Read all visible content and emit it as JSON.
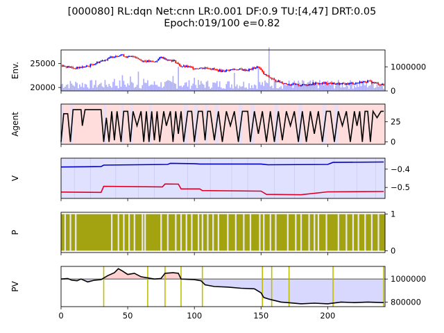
{
  "title_line1": "[000080] RL:dqn Net:cnn LR:0.001 DF:0.9 TU:[4,47] DRT:0.05",
  "title_line2": "Epoch:019/100 e=0.82",
  "colors": {
    "up": "#0000ff",
    "down": "#ff0000",
    "volume": "#aaaaff",
    "agent_line": "#000000",
    "agent_shade": "#ffdddd",
    "agent_shade_alt": "#e0e0ff",
    "v_bg": "#e0e0ff",
    "v_line_blue": "#0000cc",
    "v_line_red": "#dd0022",
    "p_fill": "#a3a312",
    "pv_line": "#000000",
    "pv_gain": "#ffd0d0",
    "pv_loss": "#d8d8ff",
    "pv_base": "#808080",
    "pv_vlines": "#bfbf00"
  },
  "chart_data": [
    {
      "type": "line",
      "id": "env",
      "ylabel": "Env.",
      "left_ticks": [
        "20000",
        "25000"
      ],
      "left_tick_values": [
        20000,
        25000
      ],
      "right_ticks": [
        "0",
        "1000000"
      ],
      "right_tick_values": [
        0,
        1000000
      ],
      "ylim": [
        19300,
        27800
      ],
      "vol_lim": [
        0,
        1700000
      ],
      "price_points": [
        [
          0,
          24600
        ],
        [
          10,
          24000
        ],
        [
          20,
          24400
        ],
        [
          30,
          25500
        ],
        [
          40,
          26500
        ],
        [
          45,
          26800
        ],
        [
          50,
          26300
        ],
        [
          55,
          26500
        ],
        [
          60,
          25600
        ],
        [
          70,
          25300
        ],
        [
          75,
          26300
        ],
        [
          80,
          25800
        ],
        [
          85,
          25500
        ],
        [
          90,
          24400
        ],
        [
          95,
          24300
        ],
        [
          100,
          24000
        ],
        [
          110,
          24100
        ],
        [
          120,
          23400
        ],
        [
          130,
          23800
        ],
        [
          140,
          23600
        ],
        [
          148,
          24300
        ],
        [
          152,
          22800
        ],
        [
          160,
          21500
        ],
        [
          170,
          20700
        ],
        [
          180,
          20500
        ],
        [
          190,
          20800
        ],
        [
          200,
          20900
        ],
        [
          210,
          20700
        ],
        [
          220,
          20900
        ],
        [
          230,
          21300
        ],
        [
          242,
          20500
        ]
      ],
      "volume_spikes": [
        [
          40,
          500000
        ],
        [
          46,
          650000
        ],
        [
          52,
          600000
        ],
        [
          58,
          800000
        ],
        [
          62,
          500000
        ],
        [
          84,
          620000
        ],
        [
          88,
          1000000
        ],
        [
          100,
          550000
        ],
        [
          130,
          750000
        ],
        [
          148,
          1000000
        ],
        [
          156,
          1800000
        ],
        [
          160,
          550000
        ],
        [
          200,
          420000
        ]
      ]
    },
    {
      "type": "line",
      "id": "agent",
      "ylabel": "Agent",
      "right_ticks": [
        "0",
        "25"
      ],
      "right_tick_values": [
        0,
        25
      ],
      "ylim": [
        -3,
        47
      ],
      "points": [
        [
          0,
          0
        ],
        [
          2,
          35
        ],
        [
          5,
          35
        ],
        [
          7,
          0
        ],
        [
          9,
          40
        ],
        [
          15,
          40
        ],
        [
          16,
          20
        ],
        [
          18,
          40
        ],
        [
          30,
          40
        ],
        [
          32,
          0
        ],
        [
          34,
          30
        ],
        [
          36,
          0
        ],
        [
          38,
          38
        ],
        [
          40,
          2
        ],
        [
          42,
          38
        ],
        [
          45,
          0
        ],
        [
          47,
          38
        ],
        [
          50,
          38
        ],
        [
          52,
          0
        ],
        [
          54,
          38
        ],
        [
          57,
          20
        ],
        [
          60,
          38
        ],
        [
          62,
          0
        ],
        [
          64,
          38
        ],
        [
          66,
          0
        ],
        [
          68,
          38
        ],
        [
          70,
          2
        ],
        [
          72,
          38
        ],
        [
          74,
          0
        ],
        [
          77,
          38
        ],
        [
          79,
          20
        ],
        [
          82,
          38
        ],
        [
          84,
          0
        ],
        [
          86,
          38
        ],
        [
          88,
          10
        ],
        [
          90,
          38
        ],
        [
          92,
          0
        ],
        [
          95,
          38
        ],
        [
          98,
          38
        ],
        [
          100,
          0
        ],
        [
          103,
          38
        ],
        [
          106,
          38
        ],
        [
          108,
          2
        ],
        [
          110,
          38
        ],
        [
          112,
          38
        ],
        [
          115,
          2
        ],
        [
          118,
          38
        ],
        [
          121,
          0
        ],
        [
          124,
          38
        ],
        [
          127,
          20
        ],
        [
          130,
          38
        ],
        [
          133,
          0
        ],
        [
          136,
          38
        ],
        [
          140,
          38
        ],
        [
          142,
          0
        ],
        [
          145,
          38
        ],
        [
          148,
          10
        ],
        [
          151,
          38
        ],
        [
          154,
          0
        ],
        [
          157,
          38
        ],
        [
          160,
          0
        ],
        [
          163,
          38
        ],
        [
          166,
          2
        ],
        [
          169,
          38
        ],
        [
          172,
          20
        ],
        [
          175,
          38
        ],
        [
          178,
          0
        ],
        [
          181,
          38
        ],
        [
          184,
          0
        ],
        [
          187,
          38
        ],
        [
          190,
          10
        ],
        [
          193,
          38
        ],
        [
          196,
          0
        ],
        [
          199,
          38
        ],
        [
          202,
          38
        ],
        [
          205,
          0
        ],
        [
          208,
          38
        ],
        [
          211,
          20
        ],
        [
          214,
          38
        ],
        [
          217,
          0
        ],
        [
          220,
          38
        ],
        [
          222,
          20
        ],
        [
          224,
          38
        ],
        [
          226,
          0
        ],
        [
          228,
          38
        ],
        [
          230,
          38
        ],
        [
          232,
          0
        ],
        [
          234,
          38
        ],
        [
          237,
          30
        ],
        [
          240,
          38
        ],
        [
          242,
          38
        ]
      ]
    },
    {
      "type": "line",
      "id": "v",
      "ylabel": "V",
      "right_ticks": [
        "−0.4",
        "−0.5"
      ],
      "right_tick_values": [
        -0.4,
        -0.5
      ],
      "ylim": [
        -0.56,
        -0.34
      ],
      "series": [
        {
          "points": [
            [
              0,
              -0.388
            ],
            [
              30,
              -0.386
            ],
            [
              32,
              -0.378
            ],
            [
              80,
              -0.374
            ],
            [
              82,
              -0.368
            ],
            [
              100,
              -0.37
            ],
            [
              104,
              -0.372
            ],
            [
              150,
              -0.372
            ],
            [
              155,
              -0.376
            ],
            [
              200,
              -0.374
            ],
            [
              204,
              -0.363
            ],
            [
              242,
              -0.361
            ]
          ]
        },
        {
          "points": [
            [
              0,
              -0.525
            ],
            [
              30,
              -0.527
            ],
            [
              32,
              -0.494
            ],
            [
              76,
              -0.497
            ],
            [
              78,
              -0.481
            ],
            [
              88,
              -0.482
            ],
            [
              90,
              -0.508
            ],
            [
              104,
              -0.508
            ],
            [
              106,
              -0.517
            ],
            [
              150,
              -0.52
            ],
            [
              154,
              -0.538
            ],
            [
              180,
              -0.54
            ],
            [
              200,
              -0.524
            ],
            [
              242,
              -0.522
            ]
          ]
        }
      ]
    },
    {
      "type": "area",
      "id": "p",
      "ylabel": "P",
      "right_ticks": [
        "0",
        "1"
      ],
      "right_tick_values": [
        0,
        1
      ],
      "ylim": [
        -0.05,
        1.05
      ],
      "gaps": [
        3,
        7,
        11,
        38,
        43,
        47,
        51,
        55,
        61,
        63,
        75,
        80,
        86,
        90,
        94,
        98,
        103,
        106,
        110,
        114,
        118,
        125,
        131,
        137,
        142,
        149,
        152,
        157,
        161,
        170,
        176,
        180,
        186,
        190,
        193,
        199,
        208,
        214,
        219,
        223,
        228,
        233,
        238
      ]
    },
    {
      "type": "line",
      "id": "pv",
      "ylabel": "PV",
      "right_ticks": [
        "1000000",
        "800000"
      ],
      "right_tick_values": [
        1000000,
        800000
      ],
      "ylim": [
        760000,
        1110000
      ],
      "baseline": 1000000,
      "x_ticks": [
        "0",
        "50",
        "100",
        "150",
        "200"
      ],
      "x_tick_values": [
        0,
        50,
        100,
        150,
        200
      ],
      "xlim": [
        0,
        243
      ],
      "points": [
        [
          0,
          1000000
        ],
        [
          5,
          1005000
        ],
        [
          8,
          990000
        ],
        [
          12,
          985000
        ],
        [
          15,
          1000000
        ],
        [
          20,
          975000
        ],
        [
          25,
          990000
        ],
        [
          30,
          995000
        ],
        [
          35,
          1030000
        ],
        [
          40,
          1055000
        ],
        [
          43,
          1090000
        ],
        [
          46,
          1070000
        ],
        [
          50,
          1040000
        ],
        [
          55,
          1050000
        ],
        [
          60,
          1020000
        ],
        [
          65,
          1010000
        ],
        [
          70,
          1000000
        ],
        [
          75,
          1005000
        ],
        [
          78,
          1050000
        ],
        [
          84,
          1055000
        ],
        [
          88,
          1050000
        ],
        [
          90,
          1000000
        ],
        [
          100,
          995000
        ],
        [
          105,
          985000
        ],
        [
          108,
          950000
        ],
        [
          115,
          935000
        ],
        [
          125,
          930000
        ],
        [
          135,
          920000
        ],
        [
          145,
          915000
        ],
        [
          150,
          880000
        ],
        [
          152,
          840000
        ],
        [
          156,
          825000
        ],
        [
          165,
          800000
        ],
        [
          170,
          795000
        ],
        [
          180,
          785000
        ],
        [
          190,
          790000
        ],
        [
          200,
          785000
        ],
        [
          210,
          800000
        ],
        [
          220,
          795000
        ],
        [
          230,
          800000
        ],
        [
          242,
          795000
        ]
      ],
      "vertical_markers": [
        32,
        65,
        78,
        90,
        106,
        151,
        158,
        171,
        204,
        242
      ]
    }
  ]
}
